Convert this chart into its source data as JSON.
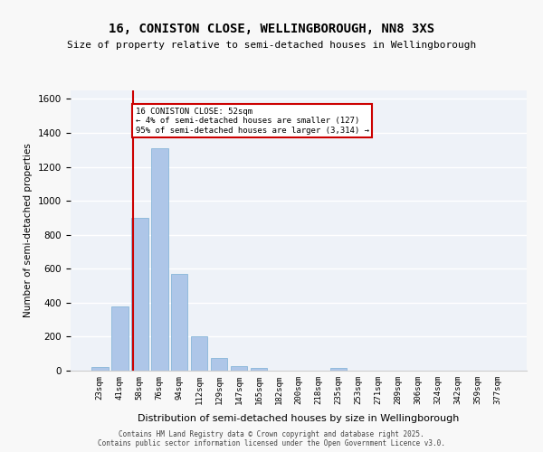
{
  "title": "16, CONISTON CLOSE, WELLINGBOROUGH, NN8 3XS",
  "subtitle": "Size of property relative to semi-detached houses in Wellingborough",
  "xlabel": "Distribution of semi-detached houses by size in Wellingborough",
  "ylabel": "Number of semi-detached properties",
  "categories": [
    "23sqm",
    "41sqm",
    "58sqm",
    "76sqm",
    "94sqm",
    "112sqm",
    "129sqm",
    "147sqm",
    "165sqm",
    "182sqm",
    "200sqm",
    "218sqm",
    "235sqm",
    "253sqm",
    "271sqm",
    "289sqm",
    "306sqm",
    "324sqm",
    "342sqm",
    "359sqm",
    "377sqm"
  ],
  "values": [
    20,
    380,
    900,
    1310,
    570,
    200,
    75,
    25,
    15,
    0,
    0,
    0,
    15,
    0,
    0,
    0,
    0,
    0,
    0,
    0,
    0
  ],
  "bar_color": "#aec6e8",
  "bar_edge_color": "#7aafd4",
  "background_color": "#eef2f8",
  "grid_color": "#ffffff",
  "ylim": [
    0,
    1650
  ],
  "yticks": [
    0,
    200,
    400,
    600,
    800,
    1000,
    1200,
    1400,
    1600
  ],
  "property_line_x": 1.65,
  "property_label": "16 CONISTON CLOSE: 52sqm",
  "annotation_line1": "← 4% of semi-detached houses are smaller (127)",
  "annotation_line2": "95% of semi-detached houses are larger (3,314) →",
  "annotation_box_color": "#ffffff",
  "annotation_box_edge": "#cc0000",
  "red_line_color": "#cc0000",
  "footnote1": "Contains HM Land Registry data © Crown copyright and database right 2025.",
  "footnote2": "Contains public sector information licensed under the Open Government Licence v3.0."
}
